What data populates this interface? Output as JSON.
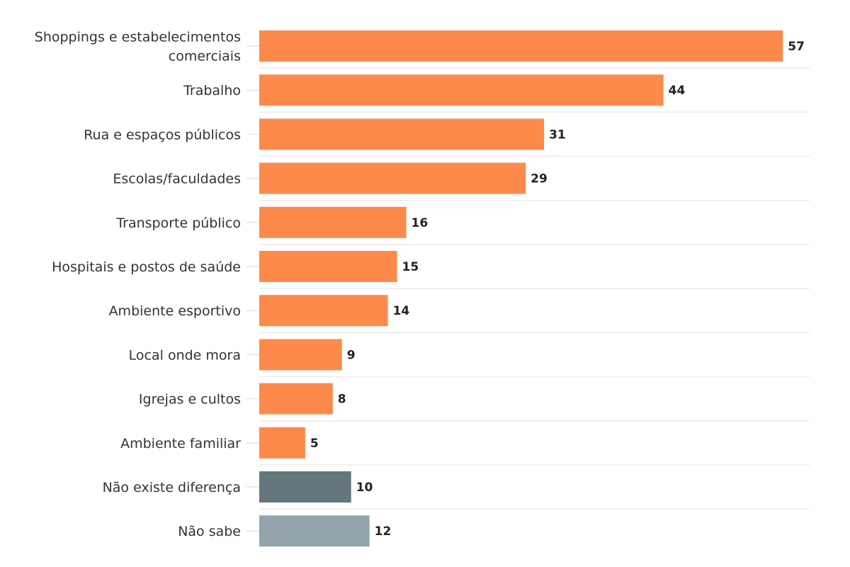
{
  "chart_data": {
    "type": "bar",
    "orientation": "horizontal",
    "title": "",
    "xlabel": "",
    "ylabel": "",
    "xlim": [
      0,
      60
    ],
    "grid": true,
    "legend": "none",
    "categories": [
      "Shoppings e estabelecimentos comerciais",
      "Trabalho",
      "Rua e espaços públicos",
      "Escolas/faculdades",
      "Transporte público",
      "Hospitais e postos de saúde",
      "Ambiente esportivo",
      "Local onde mora",
      "Igrejas e cultos",
      "Ambiente familiar",
      "Não existe diferença",
      "Não sabe"
    ],
    "values": [
      57,
      44,
      31,
      29,
      16,
      15,
      14,
      9,
      8,
      5,
      10,
      12
    ],
    "colors": [
      "#fd8a4b",
      "#fd8a4b",
      "#fd8a4b",
      "#fd8a4b",
      "#fd8a4b",
      "#fd8a4b",
      "#fd8a4b",
      "#fd8a4b",
      "#fd8a4b",
      "#fd8a4b",
      "#64767e",
      "#94a4ad"
    ]
  }
}
